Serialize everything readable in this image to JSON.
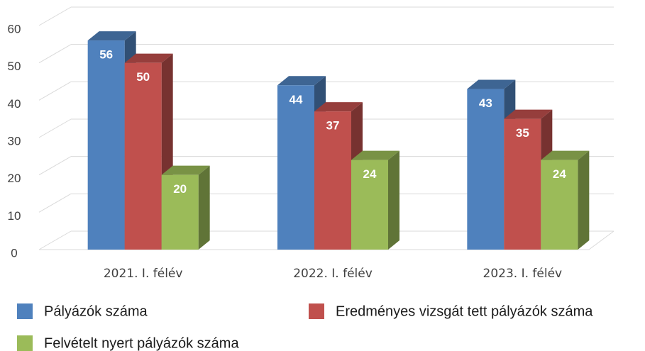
{
  "chart_data": {
    "type": "bar3d",
    "categories": [
      "2021. I. félév",
      "2022. I. félév",
      "2023. I. félév"
    ],
    "series": [
      {
        "name": "Pályázók száma",
        "color": "#4f81bd",
        "values": [
          56,
          44,
          43
        ]
      },
      {
        "name": "Eredményes vizsgát tett pályázók száma",
        "color": "#c0504d",
        "values": [
          50,
          37,
          35
        ]
      },
      {
        "name": "Felvételt nyert pályázók száma",
        "color": "#9bbb59",
        "values": [
          20,
          24,
          24
        ]
      }
    ],
    "ylim": [
      0,
      60
    ],
    "yticks": [
      0,
      10,
      20,
      30,
      40,
      50,
      60
    ],
    "grid": true
  }
}
